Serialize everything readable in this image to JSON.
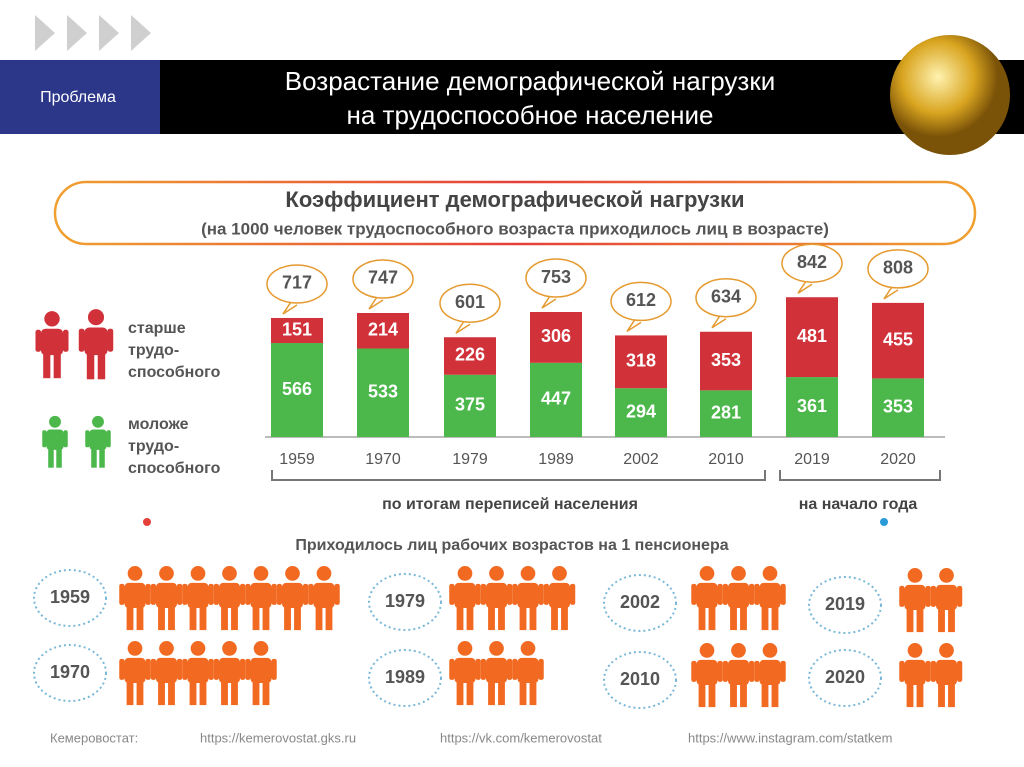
{
  "header": {
    "tag": "Проблема",
    "title": "Возрастание демографической нагрузки\nна трудоспособное население"
  },
  "chart_data": {
    "type": "stacked-bar",
    "title": "Коэффициент демографической нагрузки",
    "subtitle": "(на 1000 человек трудоспособного возраста приходилось лиц в возрасте)",
    "categories": [
      "1959",
      "1970",
      "1979",
      "1989",
      "2002",
      "2010",
      "2019",
      "2020"
    ],
    "series": [
      {
        "name": "моложе\nтрудо-\nспособного",
        "color": "#4cb84c",
        "values": [
          566,
          533,
          375,
          447,
          294,
          281,
          361,
          353
        ]
      },
      {
        "name": "старше\nтрудо-\nспособного",
        "color": "#d1323a",
        "values": [
          151,
          214,
          226,
          306,
          318,
          353,
          481,
          455
        ]
      }
    ],
    "totals": [
      717,
      747,
      601,
      753,
      612,
      634,
      842,
      808
    ],
    "groups": [
      "по итогам переписей населения",
      "на начало года"
    ]
  },
  "pensioners": {
    "title": "Приходилось лиц рабочих возрастов на 1 пенсионера",
    "years": [
      "1959",
      "1970",
      "1979",
      "1989",
      "2002",
      "2010",
      "2019",
      "2020"
    ],
    "counts": [
      7,
      5,
      4,
      3,
      3,
      3,
      2,
      2
    ]
  },
  "footer": [
    "Кемеровостат:",
    "https://kemerovostat.gks.ru",
    "https://vk.com/kemerovostat",
    "https://www.instagram.com/statkem"
  ]
}
